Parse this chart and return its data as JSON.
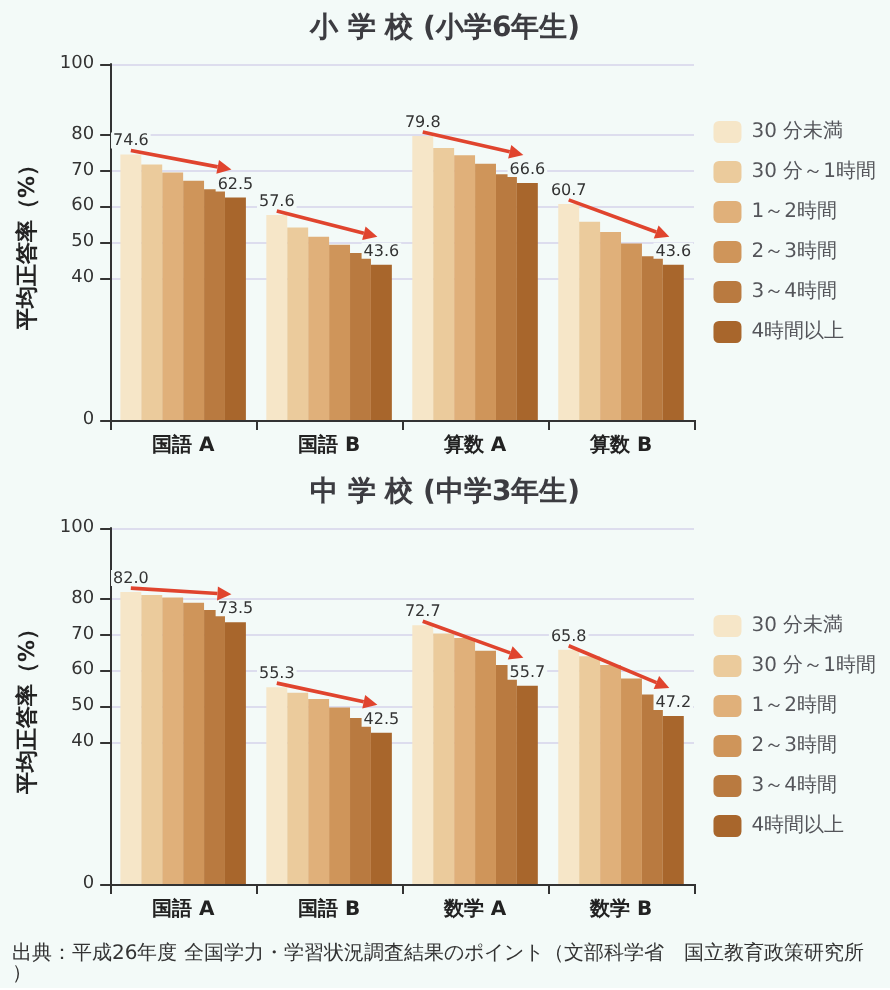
{
  "chart_data": [
    {
      "type": "bar",
      "title": "小 学 校 (小学6年生)",
      "ylabel": "平均正答率（%）",
      "categories": [
        "国語 A",
        "国語 B",
        "算数 A",
        "算数 B"
      ],
      "ylim": [
        0,
        100
      ],
      "yticks": [
        0,
        40,
        50,
        60,
        70,
        80,
        100
      ],
      "grid": "y",
      "legend": "right",
      "series": [
        {
          "name": "30 分未満",
          "color": "#f6e6c8",
          "values": [
            74.6,
            57.6,
            79.8,
            60.7
          ],
          "value_labels": [
            "74.6",
            "57.6",
            "79.8",
            "60.7"
          ]
        },
        {
          "name": "30 分～1時間",
          "color": "#ebcb9c",
          "values": [
            71.8,
            54.1,
            76.4,
            55.7
          ]
        },
        {
          "name": "1～2時間",
          "color": "#e0b07a",
          "values": [
            69.5,
            51.5,
            74.4,
            52.8
          ]
        },
        {
          "name": "2～3時間",
          "color": "#cf955a",
          "values": [
            67.2,
            49.2,
            72.0,
            49.6
          ]
        },
        {
          "name": "3～4時間",
          "color": "#b97a40",
          "values": [
            64.8,
            46.9,
            69.0,
            46.0
          ]
        },
        {
          "name": "4時間以上",
          "color": "#a8662c",
          "values": [
            62.5,
            43.6,
            66.6,
            43.6
          ],
          "value_labels": [
            "62.5",
            "43.6",
            "66.6",
            "43.6"
          ]
        }
      ]
    },
    {
      "type": "bar",
      "title": "中 学 校 (中学3年生)",
      "ylabel": "平均正答率（%）",
      "categories": [
        "国語 A",
        "国語 B",
        "数学 A",
        "数学 B"
      ],
      "ylim": [
        0,
        100
      ],
      "yticks": [
        0,
        40,
        50,
        60,
        70,
        80,
        100
      ],
      "grid": "y",
      "legend": "right",
      "annotations": [
        "出典：平成26年度 全国学力・学習状況調査結果のポイント（文部科学省　国立教育政策研究所）"
      ],
      "series": [
        {
          "name": "30 分未満",
          "color": "#f6e6c8",
          "values": [
            82.0,
            55.3,
            72.7,
            65.8
          ],
          "value_labels": [
            "82.0",
            "55.3",
            "72.7",
            "65.8"
          ]
        },
        {
          "name": "30 分～1時間",
          "color": "#ebcb9c",
          "values": [
            81.2,
            53.7,
            70.4,
            64.0
          ]
        },
        {
          "name": "1～2時間",
          "color": "#e0b07a",
          "values": [
            80.5,
            52.0,
            69.1,
            61.5
          ]
        },
        {
          "name": "2～3時間",
          "color": "#cf955a",
          "values": [
            79.0,
            49.6,
            65.5,
            57.7
          ]
        },
        {
          "name": "3～4時間",
          "color": "#b97a40",
          "values": [
            77.0,
            46.6,
            61.5,
            53.2
          ]
        },
        {
          "name": "4時間以上",
          "color": "#a8662c",
          "values": [
            73.5,
            42.5,
            55.7,
            47.2
          ],
          "value_labels": [
            "73.5",
            "42.5",
            "55.7",
            "47.2"
          ]
        }
      ]
    }
  ]
}
